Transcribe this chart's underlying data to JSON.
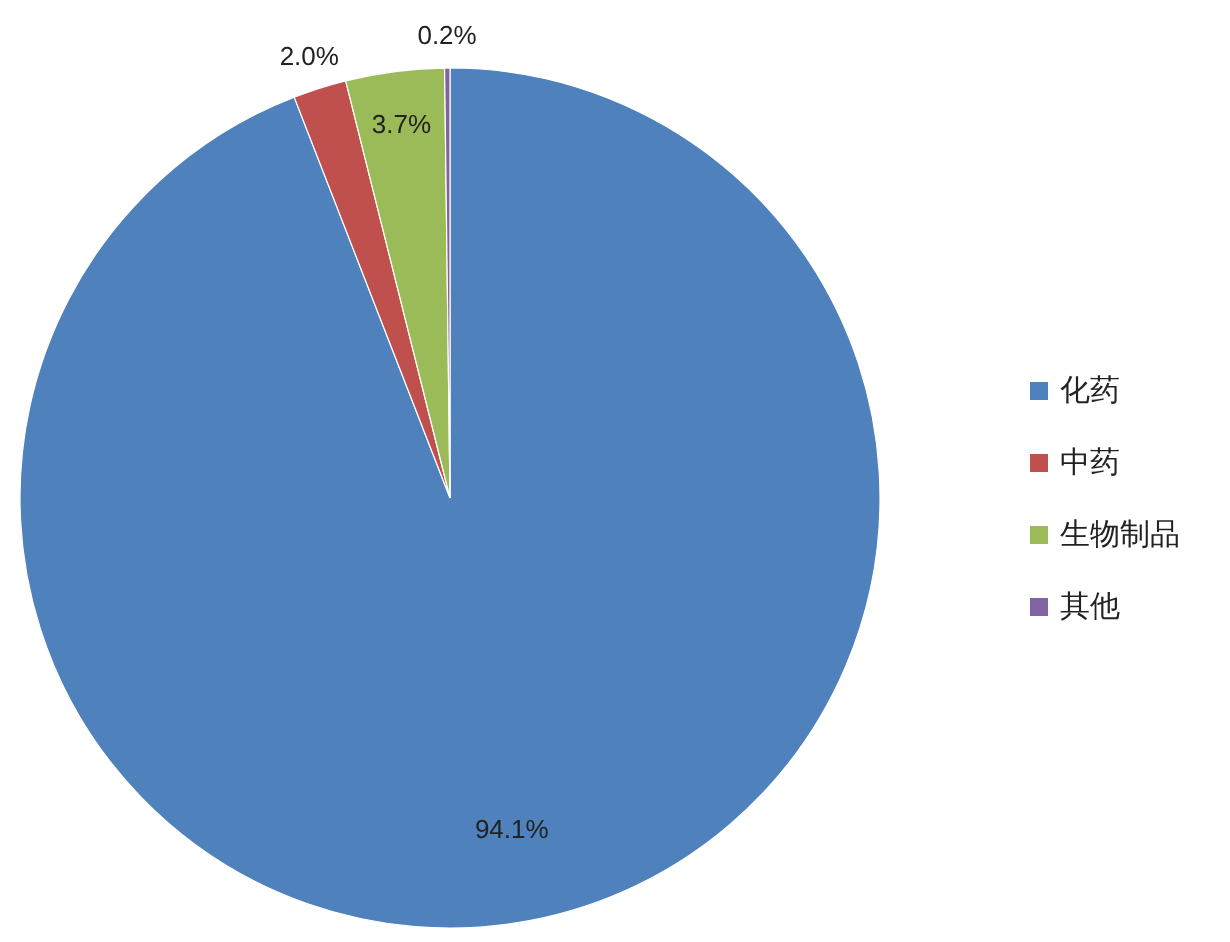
{
  "chart_data": {
    "type": "pie",
    "categories": [
      "化药",
      "中药",
      "生物制品",
      "其他"
    ],
    "values": [
      94.1,
      2.0,
      3.7,
      0.2
    ],
    "value_labels": [
      "94.1%",
      "2.0%",
      "3.7%",
      "0.2%"
    ],
    "colors": [
      "#4f81bd",
      "#c0504d",
      "#9bbb59",
      "#8064a2"
    ],
    "legend": "right"
  }
}
